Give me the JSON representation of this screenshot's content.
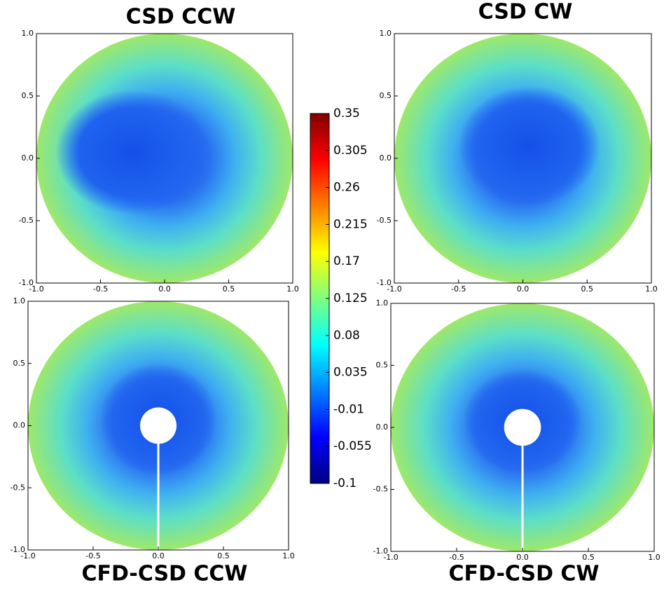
{
  "chart_data": [
    {
      "type": "contour",
      "title": "CSD CCW",
      "xlim": [
        -1,
        1
      ],
      "ylim": [
        -1,
        1
      ],
      "xticks": [
        {
          "value": -1,
          "label": "-1.0"
        },
        {
          "value": -0.5,
          "label": "-0.5"
        },
        {
          "value": 0,
          "label": "0.0"
        },
        {
          "value": 0.5,
          "label": "0.5"
        },
        {
          "value": 1,
          "label": "1.0"
        }
      ],
      "yticks": [
        {
          "value": -1,
          "label": "-1.0"
        },
        {
          "value": -0.5,
          "label": "-0.5"
        },
        {
          "value": 0,
          "label": "0.0"
        },
        {
          "value": 0.5,
          "label": "0.5"
        },
        {
          "value": 1,
          "label": "1.0"
        }
      ]
    },
    {
      "type": "contour",
      "title": "CSD CW",
      "xlim": [
        -1,
        1
      ],
      "ylim": [
        -1,
        1
      ],
      "xticks": [
        {
          "value": -1,
          "label": "-1.0"
        },
        {
          "value": -0.5,
          "label": "-0.5"
        },
        {
          "value": 0,
          "label": "0.0"
        },
        {
          "value": 0.5,
          "label": "0.5"
        },
        {
          "value": 1,
          "label": "1.0"
        }
      ],
      "yticks": [
        {
          "value": -1,
          "label": "-1.0"
        },
        {
          "value": -0.5,
          "label": "-0.5"
        },
        {
          "value": 0,
          "label": "0.0"
        },
        {
          "value": 0.5,
          "label": "0.5"
        },
        {
          "value": 1,
          "label": "1.0"
        }
      ]
    },
    {
      "type": "contour",
      "title": "CFD-CSD CCW",
      "xlim": [
        -1,
        1
      ],
      "ylim": [
        -1,
        1
      ],
      "xticks": [
        {
          "value": -1,
          "label": "-1.0"
        },
        {
          "value": -0.5,
          "label": "-0.5"
        },
        {
          "value": 0,
          "label": "0.0"
        },
        {
          "value": 0.5,
          "label": "0.5"
        },
        {
          "value": 1,
          "label": "1.0"
        }
      ],
      "yticks": [
        {
          "value": -1,
          "label": "-1.0"
        },
        {
          "value": -0.5,
          "label": "-0.5"
        },
        {
          "value": 0,
          "label": "0.0"
        },
        {
          "value": 0.5,
          "label": "0.5"
        },
        {
          "value": 1,
          "label": "1.0"
        }
      ]
    },
    {
      "type": "contour",
      "title": "CFD-CSD CW",
      "xlim": [
        -1,
        1
      ],
      "ylim": [
        -1,
        1
      ],
      "xticks": [
        {
          "value": -1,
          "label": "-1.0"
        },
        {
          "value": -0.5,
          "label": "-0.5"
        },
        {
          "value": 0,
          "label": "0.0"
        },
        {
          "value": 0.5,
          "label": "0.5"
        },
        {
          "value": 1,
          "label": "1.0"
        }
      ],
      "yticks": [
        {
          "value": -1,
          "label": "-1.0"
        },
        {
          "value": -0.5,
          "label": "-0.5"
        },
        {
          "value": 0,
          "label": "0.0"
        },
        {
          "value": 0.5,
          "label": "0.5"
        },
        {
          "value": 1,
          "label": "1.0"
        }
      ]
    }
  ],
  "colorbar": {
    "colormap": "jet",
    "lim": [
      -0.1,
      0.35
    ],
    "ticks": [
      0.35,
      0.305,
      0.26,
      0.215,
      0.17,
      0.125,
      0.08,
      0.035,
      -0.01,
      -0.055,
      -0.1
    ]
  }
}
